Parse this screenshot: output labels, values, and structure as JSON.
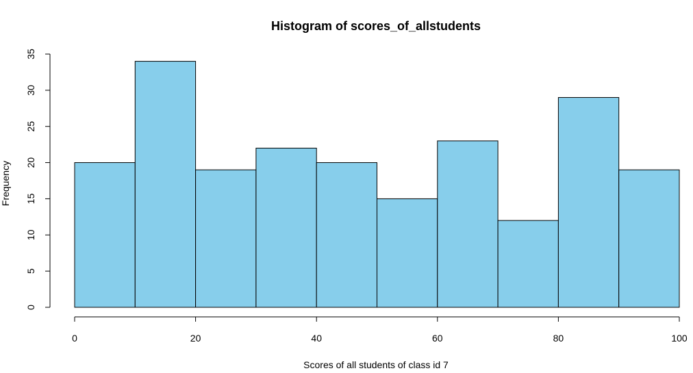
{
  "chart_data": {
    "type": "bar",
    "title": "Histogram of scores_of_allstudents",
    "xlabel": "Scores of all students of class id 7",
    "ylabel": "Frequency",
    "bins": [
      {
        "from": 0,
        "to": 10,
        "count": 20
      },
      {
        "from": 10,
        "to": 20,
        "count": 34
      },
      {
        "from": 20,
        "to": 30,
        "count": 19
      },
      {
        "from": 30,
        "to": 40,
        "count": 22
      },
      {
        "from": 40,
        "to": 50,
        "count": 20
      },
      {
        "from": 50,
        "to": 60,
        "count": 15
      },
      {
        "from": 60,
        "to": 70,
        "count": 23
      },
      {
        "from": 70,
        "to": 80,
        "count": 12
      },
      {
        "from": 80,
        "to": 90,
        "count": 29
      },
      {
        "from": 90,
        "to": 100,
        "count": 19
      }
    ],
    "xlim": [
      0,
      100
    ],
    "ylim": [
      0,
      35
    ],
    "xticks": [
      "0",
      "20",
      "40",
      "60",
      "80",
      "100"
    ],
    "yticks": [
      "0",
      "5",
      "10",
      "15",
      "20",
      "25",
      "30",
      "35"
    ],
    "bar_color": "#87ceeb",
    "edge_color": "#000000",
    "grid": false,
    "legend": "none"
  }
}
